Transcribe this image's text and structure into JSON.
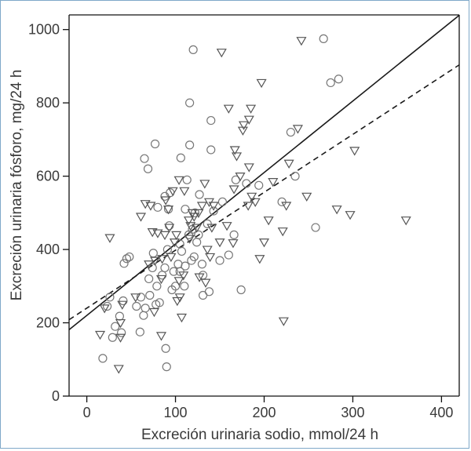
{
  "chart_data": {
    "type": "scatter",
    "xlabel": "Excreción urinaria sodio, mmol/24 h",
    "ylabel": "Excreción urinaria fósforo, mg/24 h",
    "xlim": [
      -20,
      420
    ],
    "ylim": [
      0,
      1040
    ],
    "x_ticks": [
      0,
      100,
      200,
      300,
      400
    ],
    "y_ticks": [
      0,
      200,
      400,
      600,
      800,
      1000
    ],
    "grid": false,
    "series": [
      {
        "marker": "circle",
        "color": "#777777",
        "points": [
          [
            18,
            103
          ],
          [
            23,
            245
          ],
          [
            26,
            270
          ],
          [
            29,
            160
          ],
          [
            32,
            190
          ],
          [
            37,
            218
          ],
          [
            39,
            173
          ],
          [
            41,
            260
          ],
          [
            42,
            362
          ],
          [
            45,
            375
          ],
          [
            48,
            380
          ],
          [
            56,
            245
          ],
          [
            60,
            175
          ],
          [
            61,
            270
          ],
          [
            64,
            220
          ],
          [
            65,
            648
          ],
          [
            66,
            240
          ],
          [
            69,
            620
          ],
          [
            70,
            320
          ],
          [
            71,
            275
          ],
          [
            74,
            350
          ],
          [
            75,
            390
          ],
          [
            77,
            688
          ],
          [
            78,
            250
          ],
          [
            79,
            300
          ],
          [
            80,
            515
          ],
          [
            82,
            255
          ],
          [
            85,
            330
          ],
          [
            88,
            350
          ],
          [
            88,
            545
          ],
          [
            89,
            130
          ],
          [
            90,
            80
          ],
          [
            91,
            400
          ],
          [
            92,
            510
          ],
          [
            93,
            465
          ],
          [
            94,
            555
          ],
          [
            96,
            290
          ],
          [
            98,
            340
          ],
          [
            100,
            300
          ],
          [
            103,
            360
          ],
          [
            105,
            340
          ],
          [
            105,
            415
          ],
          [
            106,
            650
          ],
          [
            107,
            395
          ],
          [
            110,
            300
          ],
          [
            111,
            510
          ],
          [
            111,
            355
          ],
          [
            113,
            590
          ],
          [
            115,
            440
          ],
          [
            116,
            800
          ],
          [
            116,
            685
          ],
          [
            118,
            370
          ],
          [
            119,
            455
          ],
          [
            120,
            945
          ],
          [
            121,
            380
          ],
          [
            122,
            500
          ],
          [
            124,
            420
          ],
          [
            126,
            440
          ],
          [
            127,
            550
          ],
          [
            130,
            360
          ],
          [
            131,
            330
          ],
          [
            131,
            275
          ],
          [
            136,
            470
          ],
          [
            138,
            285
          ],
          [
            140,
            752
          ],
          [
            140,
            672
          ],
          [
            143,
            505
          ],
          [
            150,
            370
          ],
          [
            153,
            530
          ],
          [
            160,
            385
          ],
          [
            166,
            440
          ],
          [
            168,
            590
          ],
          [
            174,
            290
          ],
          [
            180,
            580
          ],
          [
            194,
            575
          ],
          [
            220,
            530
          ],
          [
            230,
            720
          ],
          [
            235,
            600
          ],
          [
            258,
            460
          ],
          [
            267,
            975
          ],
          [
            275,
            855
          ],
          [
            284,
            865
          ]
        ]
      },
      {
        "marker": "triangle",
        "color": "#555555",
        "points": [
          [
            15,
            168
          ],
          [
            20,
            240
          ],
          [
            26,
            432
          ],
          [
            36,
            75
          ],
          [
            38,
            160
          ],
          [
            38,
            200
          ],
          [
            40,
            250
          ],
          [
            55,
            270
          ],
          [
            61,
            490
          ],
          [
            66,
            525
          ],
          [
            70,
            360
          ],
          [
            72,
            520
          ],
          [
            74,
            448
          ],
          [
            76,
            230
          ],
          [
            77,
            370
          ],
          [
            80,
            445
          ],
          [
            84,
            320
          ],
          [
            84,
            165
          ],
          [
            85,
            375
          ],
          [
            88,
            440
          ],
          [
            89,
            535
          ],
          [
            92,
            510
          ],
          [
            93,
            460
          ],
          [
            95,
            380
          ],
          [
            97,
            560
          ],
          [
            99,
            420
          ],
          [
            101,
            440
          ],
          [
            102,
            260
          ],
          [
            104,
            315
          ],
          [
            104,
            590
          ],
          [
            105,
            270
          ],
          [
            107,
            215
          ],
          [
            109,
            330
          ],
          [
            110,
            560
          ],
          [
            115,
            480
          ],
          [
            116,
            430
          ],
          [
            117,
            465
          ],
          [
            119,
            500
          ],
          [
            121,
            490
          ],
          [
            124,
            460
          ],
          [
            126,
            500
          ],
          [
            127,
            325
          ],
          [
            130,
            520
          ],
          [
            133,
            580
          ],
          [
            134,
            310
          ],
          [
            136,
            400
          ],
          [
            138,
            530
          ],
          [
            139,
            380
          ],
          [
            141,
            460
          ],
          [
            143,
            520
          ],
          [
            150,
            420
          ],
          [
            152,
            938
          ],
          [
            158,
            465
          ],
          [
            160,
            785
          ],
          [
            165,
            418
          ],
          [
            166,
            565
          ],
          [
            167,
            672
          ],
          [
            169,
            655
          ],
          [
            173,
            600
          ],
          [
            176,
            725
          ],
          [
            177,
            740
          ],
          [
            182,
            520
          ],
          [
            183,
            755
          ],
          [
            183,
            625
          ],
          [
            185,
            785
          ],
          [
            186,
            545
          ],
          [
            190,
            530
          ],
          [
            195,
            375
          ],
          [
            197,
            855
          ],
          [
            200,
            420
          ],
          [
            205,
            480
          ],
          [
            210,
            585
          ],
          [
            221,
            450
          ],
          [
            222,
            205
          ],
          [
            225,
            520
          ],
          [
            228,
            635
          ],
          [
            238,
            730
          ],
          [
            242,
            970
          ],
          [
            248,
            545
          ],
          [
            282,
            510
          ],
          [
            297,
            495
          ],
          [
            302,
            670
          ],
          [
            360,
            480
          ]
        ]
      }
    ],
    "fit_lines": [
      {
        "style": "solid",
        "x_range": [
          -20,
          420
        ],
        "intercept": 220,
        "slope": 1.95
      },
      {
        "style": "dashed",
        "x_range": [
          -20,
          420
        ],
        "intercept": 240,
        "slope": 1.58
      }
    ]
  }
}
